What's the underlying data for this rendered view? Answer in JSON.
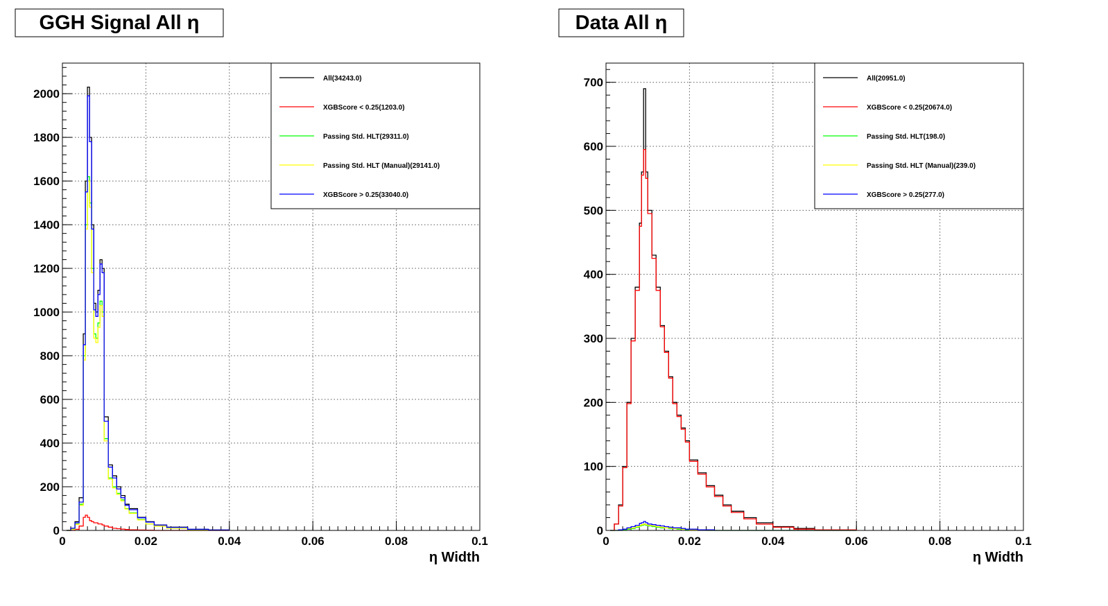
{
  "chart_data": [
    {
      "type": "line",
      "title": "GGH Signal All η",
      "xlabel": "η Width",
      "ylabel": "",
      "xlim": [
        0,
        0.1
      ],
      "ylim": [
        0,
        2140
      ],
      "grid": true,
      "legend_position": "top-right",
      "xticks": [
        0,
        0.02,
        0.04,
        0.06,
        0.08,
        0.1
      ],
      "xtick_labels": [
        "0",
        "0.02",
        "0.04",
        "0.06",
        "0.08",
        "0.1"
      ],
      "yticks": [
        0,
        200,
        400,
        600,
        800,
        1000,
        1200,
        1400,
        1600,
        1800,
        2000
      ],
      "ytick_labels": [
        "0",
        "200",
        "400",
        "600",
        "800",
        "1000",
        "1200",
        "1400",
        "1600",
        "1800",
        "2000"
      ],
      "x": [
        0.001,
        0.002,
        0.003,
        0.004,
        0.005,
        0.0055,
        0.006,
        0.0065,
        0.007,
        0.0075,
        0.008,
        0.0085,
        0.009,
        0.0095,
        0.01,
        0.011,
        0.012,
        0.013,
        0.014,
        0.015,
        0.016,
        0.018,
        0.02,
        0.022,
        0.025,
        0.03,
        0.035,
        0.04
      ],
      "series": [
        {
          "name": "All(34243.0)",
          "color": "#000000",
          "values": [
            0,
            10,
            40,
            150,
            900,
            1600,
            2030,
            1800,
            1400,
            1040,
            1000,
            1100,
            1240,
            1200,
            520,
            300,
            250,
            200,
            160,
            120,
            100,
            60,
            40,
            25,
            15,
            5,
            2,
            0
          ]
        },
        {
          "name": "XGBScore < 0.25(1203.0)",
          "color": "#ff0000",
          "values": [
            0,
            0,
            5,
            20,
            60,
            70,
            60,
            45,
            40,
            35,
            35,
            30,
            30,
            25,
            20,
            15,
            10,
            8,
            6,
            4,
            3,
            2,
            1,
            0,
            0,
            0,
            0,
            0
          ]
        },
        {
          "name": "Passing Std. HLT(29311.0)",
          "color": "#00ff00",
          "values": [
            0,
            5,
            30,
            120,
            800,
            1400,
            1620,
            1500,
            1200,
            900,
            880,
            950,
            1050,
            1000,
            420,
            240,
            200,
            170,
            140,
            100,
            80,
            50,
            30,
            20,
            10,
            4,
            1,
            0
          ]
        },
        {
          "name": "Passing Std. HLT (Manual)(29141.0)",
          "color": "#ffff00",
          "values": [
            0,
            5,
            28,
            115,
            780,
            1380,
            1600,
            1480,
            1180,
            880,
            860,
            930,
            1030,
            980,
            410,
            235,
            195,
            165,
            135,
            98,
            78,
            48,
            30,
            20,
            10,
            4,
            1,
            0
          ]
        },
        {
          "name": "XGBScore > 0.25(33040.0)",
          "color": "#0000ff",
          "values": [
            0,
            10,
            35,
            130,
            850,
            1550,
            1990,
            1780,
            1380,
            1010,
            980,
            1080,
            1220,
            1180,
            500,
            290,
            240,
            190,
            150,
            115,
            95,
            58,
            38,
            24,
            14,
            5,
            2,
            0
          ]
        }
      ]
    },
    {
      "type": "line",
      "title": "Data All η",
      "xlabel": "η Width",
      "ylabel": "",
      "xlim": [
        0,
        0.1
      ],
      "ylim": [
        0,
        730
      ],
      "grid": true,
      "legend_position": "top-right",
      "xticks": [
        0,
        0.02,
        0.04,
        0.06,
        0.08,
        0.1
      ],
      "xtick_labels": [
        "0",
        "0.02",
        "0.04",
        "0.06",
        "0.08",
        "0.1"
      ],
      "yticks": [
        0,
        100,
        200,
        300,
        400,
        500,
        600,
        700
      ],
      "ytick_labels": [
        "0",
        "100",
        "200",
        "300",
        "400",
        "500",
        "600",
        "700"
      ],
      "x": [
        0.001,
        0.002,
        0.003,
        0.004,
        0.005,
        0.006,
        0.007,
        0.008,
        0.0085,
        0.009,
        0.0095,
        0.01,
        0.011,
        0.012,
        0.013,
        0.014,
        0.015,
        0.016,
        0.017,
        0.018,
        0.019,
        0.02,
        0.022,
        0.024,
        0.026,
        0.028,
        0.03,
        0.033,
        0.036,
        0.04,
        0.045,
        0.05,
        0.06
      ],
      "series": [
        {
          "name": "All(20951.0)",
          "color": "#000000",
          "values": [
            0,
            10,
            40,
            100,
            200,
            300,
            380,
            480,
            560,
            690,
            560,
            500,
            430,
            380,
            320,
            280,
            240,
            200,
            180,
            160,
            140,
            110,
            90,
            70,
            55,
            40,
            30,
            20,
            12,
            6,
            3,
            1,
            0
          ]
        },
        {
          "name": "XGBScore < 0.25(20674.0)",
          "color": "#ff0000",
          "values": [
            0,
            10,
            38,
            98,
            198,
            296,
            375,
            475,
            555,
            595,
            550,
            495,
            425,
            375,
            318,
            278,
            238,
            198,
            178,
            158,
            138,
            108,
            88,
            68,
            53,
            38,
            28,
            18,
            10,
            5,
            2,
            1,
            0
          ]
        },
        {
          "name": "Passing Std. HLT(198.0)",
          "color": "#00ff00",
          "values": [
            0,
            0,
            0,
            1,
            2,
            3,
            5,
            7,
            8,
            9,
            8,
            7,
            6,
            5,
            4,
            4,
            3,
            3,
            2,
            2,
            1,
            1,
            1,
            0,
            0,
            0,
            0,
            0,
            0,
            0,
            0,
            0,
            0
          ]
        },
        {
          "name": "Passing Std. HLT (Manual)(239.0)",
          "color": "#ffff00",
          "values": [
            0,
            0,
            1,
            2,
            3,
            4,
            6,
            8,
            9,
            10,
            9,
            8,
            7,
            6,
            5,
            4,
            4,
            3,
            3,
            2,
            2,
            1,
            1,
            0,
            0,
            0,
            0,
            0,
            0,
            0,
            0,
            0,
            0
          ]
        },
        {
          "name": "XGBScore > 0.25(277.0)",
          "color": "#0000ff",
          "values": [
            0,
            0,
            1,
            2,
            4,
            6,
            8,
            11,
            12,
            14,
            12,
            10,
            9,
            8,
            7,
            6,
            5,
            4,
            4,
            3,
            2,
            2,
            1,
            1,
            0,
            0,
            0,
            0,
            0,
            0,
            0,
            0,
            0
          ]
        }
      ]
    }
  ]
}
